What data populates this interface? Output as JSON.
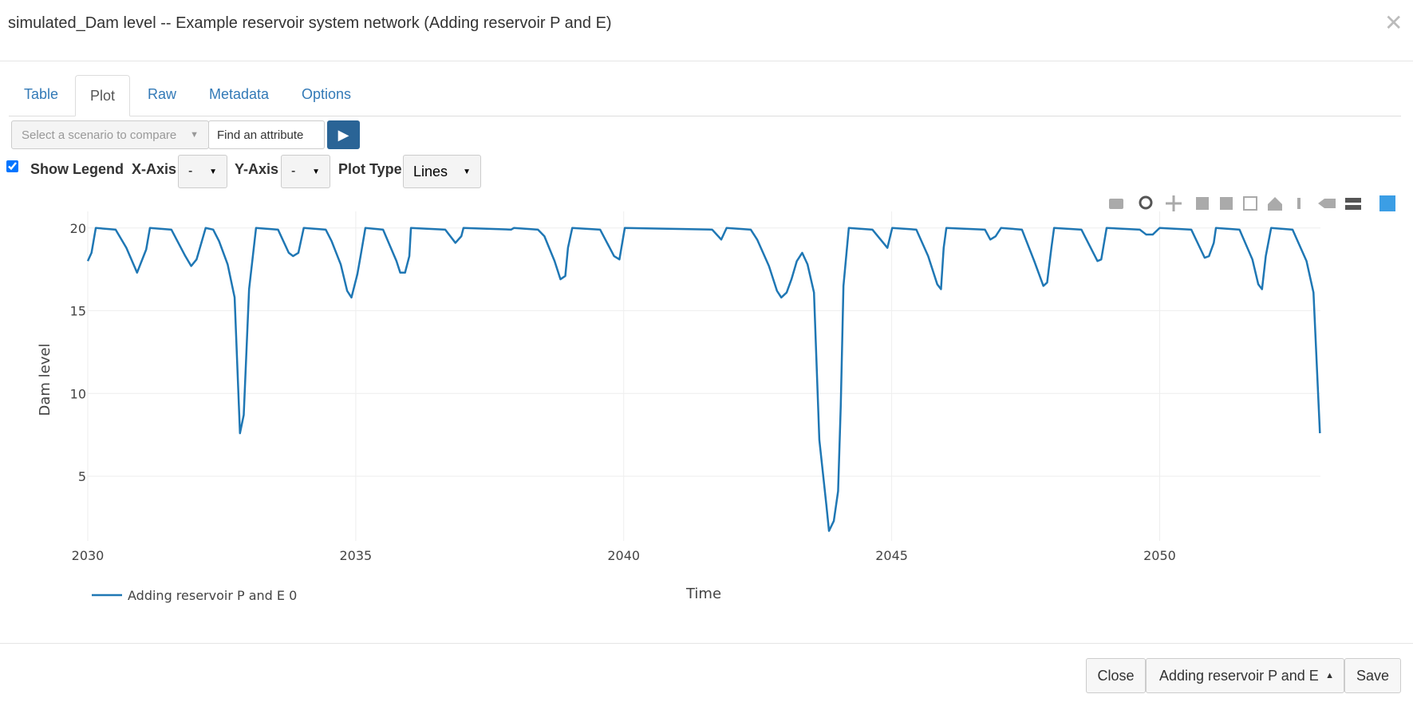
{
  "header": {
    "title": "simulated_Dam level -- Example reservoir system network (Adding reservoir P and E)"
  },
  "tabs": [
    "Table",
    "Plot",
    "Raw",
    "Metadata",
    "Options"
  ],
  "toolbar": {
    "scenario_placeholder": "Select a scenario to compare",
    "attribute_placeholder": "Find an attribute"
  },
  "controls": {
    "show_legend_label": "Show Legend",
    "show_legend": true,
    "x_axis_label": "X-Axis",
    "x_axis_value": "-",
    "y_axis_label": "Y-Axis",
    "y_axis_value": "-",
    "plot_type_label": "Plot Type",
    "plot_type_value": "Lines"
  },
  "chart_data": {
    "type": "line",
    "x_label": "Time",
    "y_label": "Dam level",
    "x": [
      2030.0,
      2030.07,
      2030.15,
      2030.52,
      2030.72,
      2030.92,
      2031.09,
      2031.16,
      2031.56,
      2031.82,
      2031.93,
      2032.03,
      2032.2,
      2032.34,
      2032.45,
      2032.61,
      2032.74,
      2032.84,
      2032.91,
      2033.01,
      2033.14,
      2033.55,
      2033.75,
      2033.83,
      2033.93,
      2034.03,
      2034.44,
      2034.55,
      2034.72,
      2034.84,
      2034.92,
      2035.03,
      2035.09,
      2035.18,
      2035.51,
      2035.76,
      2035.83,
      2035.92,
      2036.0,
      2036.03,
      2036.67,
      2036.86,
      2036.97,
      2037.01,
      2037.9,
      2037.95,
      2038.4,
      2038.52,
      2038.71,
      2038.82,
      2038.91,
      2038.96,
      2039.04,
      2039.56,
      2039.82,
      2039.92,
      2040.02,
      2041.65,
      2041.82,
      2041.92,
      2042.37,
      2042.49,
      2042.71,
      2042.86,
      2042.94,
      2043.04,
      2043.13,
      2043.23,
      2043.33,
      2043.43,
      2043.55,
      2043.65,
      2043.78,
      2043.83,
      2043.92,
      2044.0,
      2044.05,
      2044.1,
      2044.2,
      2044.64,
      2044.92,
      2045.01,
      2045.46,
      2045.68,
      2045.85,
      2045.92,
      2045.97,
      2046.02,
      2046.74,
      2046.84,
      2046.94,
      2047.04,
      2047.43,
      2047.66,
      2047.83,
      2047.9,
      2047.98,
      2048.03,
      2048.54,
      2048.84,
      2048.91,
      2049.01,
      2049.63,
      2049.75,
      2049.87,
      2050.0,
      2050.59,
      2050.84,
      2050.92,
      2051.01,
      2051.05,
      2051.49,
      2051.73,
      2051.84,
      2051.91,
      2051.98,
      2052.08,
      2052.48,
      2052.74,
      2052.87,
      2052.99
    ],
    "series": [
      {
        "name": "Adding reservoir P and E 0",
        "color": "#1f77b4",
        "values": [
          18.0,
          18.5,
          20,
          19.9,
          18.8,
          17.3,
          18.7,
          20,
          19.9,
          18.3,
          17.7,
          18.1,
          20,
          19.9,
          19.2,
          17.8,
          15.8,
          7.6,
          8.7,
          16.3,
          20,
          19.9,
          18.5,
          18.3,
          18.5,
          20,
          19.9,
          19.2,
          17.8,
          16.2,
          15.8,
          17.2,
          18.3,
          20,
          19.9,
          18.0,
          17.3,
          17.3,
          18.3,
          20,
          19.9,
          19.1,
          19.5,
          20,
          19.9,
          20,
          19.9,
          19.5,
          18.0,
          16.9,
          17.1,
          18.8,
          20,
          19.9,
          18.3,
          18.1,
          20,
          19.9,
          19.3,
          20,
          19.9,
          19.3,
          17.7,
          16.2,
          15.8,
          16.1,
          16.9,
          18.0,
          18.5,
          17.8,
          16.1,
          7.2,
          3.3,
          1.7,
          2.3,
          4.1,
          9.3,
          16.5,
          20,
          19.9,
          18.8,
          20,
          19.9,
          18.3,
          16.6,
          16.3,
          18.8,
          20,
          19.9,
          19.3,
          19.5,
          20,
          19.9,
          18.0,
          16.5,
          16.7,
          18.8,
          20,
          19.9,
          18.0,
          18.1,
          20,
          19.9,
          19.6,
          19.6,
          20,
          19.9,
          18.2,
          18.3,
          19.1,
          20,
          19.9,
          18.1,
          16.6,
          16.3,
          18.3,
          20,
          19.9,
          18.0,
          16.1,
          7.6
        ]
      }
    ],
    "xlim": [
      2030,
      2053
    ],
    "ylim": [
      1.1,
      21
    ],
    "xticks": [
      2030,
      2035,
      2040,
      2045,
      2050
    ],
    "yticks": [
      5,
      10,
      15,
      20
    ],
    "grid": true,
    "legend": true
  },
  "footer": {
    "close": "Close",
    "scenario": "Adding reservoir P and E",
    "save": "Save"
  }
}
